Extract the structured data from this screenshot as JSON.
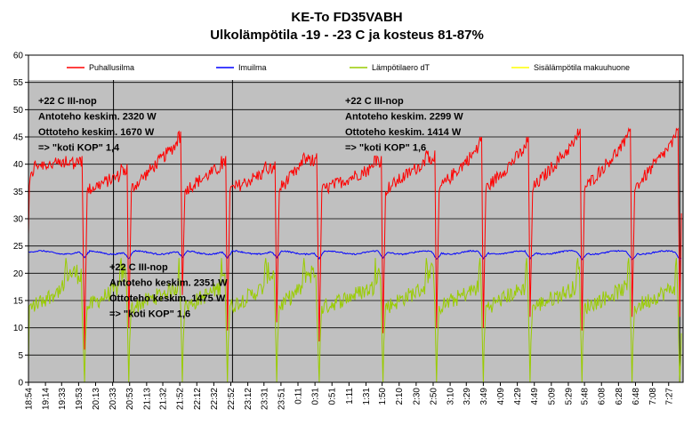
{
  "chart_data": {
    "type": "line",
    "title": "KE-To FD35VABH",
    "subtitle": "Ulkolämpötila -19 - -23 C ja kosteus 81-87%",
    "xlabel": "",
    "ylabel": "",
    "ylim": [
      0,
      60
    ],
    "yticks": [
      0,
      5,
      10,
      15,
      20,
      25,
      30,
      35,
      40,
      45,
      50,
      55,
      60
    ],
    "grid": true,
    "legend_position": "top",
    "x_tick_labels": [
      "18:54",
      "19:14",
      "19:33",
      "19:53",
      "20:13",
      "20:33",
      "20:53",
      "21:13",
      "21:32",
      "21:52",
      "22:12",
      "22:32",
      "22:52",
      "23:12",
      "23:31",
      "23:51",
      "0:11",
      "0:31",
      "0:51",
      "1:11",
      "1:31",
      "1:50",
      "2:10",
      "2:30",
      "2:50",
      "3:10",
      "3:29",
      "3:49",
      "4:09",
      "4:29",
      "4:49",
      "5:09",
      "5:29",
      "5:48",
      "6:08",
      "6:28",
      "6:48",
      "7:08",
      "7:27"
    ],
    "x_tick_minutes": [
      0,
      20,
      39,
      59,
      79,
      99,
      119,
      139,
      158,
      178,
      198,
      218,
      238,
      258,
      277,
      297,
      317,
      337,
      357,
      377,
      397,
      416,
      436,
      456,
      476,
      496,
      515,
      535,
      555,
      575,
      595,
      615,
      635,
      654,
      674,
      694,
      714,
      734,
      753
    ],
    "x_range_minutes": [
      0,
      770
    ],
    "separators_minutes": [
      100,
      240,
      766
    ],
    "cycles": [
      {
        "top": 41.5,
        "low": 6,
        "hold": 20,
        "drop": 3
      },
      {
        "top": 40,
        "low": 10,
        "hold": 8,
        "drop": 2
      },
      {
        "top": 46,
        "low": 16,
        "hold": 3,
        "drop": 2
      },
      {
        "top": 41.5,
        "low": 9.5,
        "hold": 6,
        "drop": 2
      },
      {
        "top": 40.5,
        "low": 11,
        "hold": 12,
        "drop": 2
      },
      {
        "top": 42,
        "low": 7.5,
        "hold": 16,
        "drop": 3
      },
      {
        "top": 41.5,
        "low": 9,
        "hold": 8,
        "drop": 2
      },
      {
        "top": 42.5,
        "low": 10,
        "hold": 11,
        "drop": 2
      },
      {
        "top": 45,
        "low": 10,
        "hold": 3,
        "drop": 2
      },
      {
        "top": 45,
        "low": 12,
        "hold": 3,
        "drop": 2
      },
      {
        "top": 46.5,
        "low": 9.5,
        "hold": 4,
        "drop": 2
      },
      {
        "top": 46.5,
        "low": 12,
        "hold": 3,
        "drop": 2
      }
    ],
    "cycle_bottoms_minutes": [
      66,
      118,
      181,
      234,
      292,
      342,
      417,
      480,
      535,
      590,
      651,
      710,
      766
    ],
    "series": [
      {
        "name": "Puhallusilma",
        "color": "#ff0000",
        "base": 40,
        "min": 6,
        "max": 46.5
      },
      {
        "name": "Imuilma",
        "color": "#0000ff",
        "base": 23.8,
        "min": 22.5,
        "max": 24.5
      },
      {
        "name": "Lämpötilaero dT",
        "color": "#99cc00",
        "base": 16.5,
        "min": 0,
        "max": 24
      },
      {
        "name": "Sisälämpötila makuuhuone",
        "color": "#ffff00",
        "values": []
      }
    ],
    "annotations": [
      {
        "lines": [
          "+22 C III-nop",
          "Antoteho keskim. 2320 W",
          "Ottoteho keskim. 1670 W",
          "=> \"koti KOP\" 1,4"
        ]
      },
      {
        "lines": [
          "+22 C III-nop",
          "Antoteho keskim. 2351 W",
          "Ottoteho keskim. 1475 W",
          "=> \"koti KOP\" 1,6"
        ]
      },
      {
        "lines": [
          "+22 C III-nop",
          "Antoteho keskim. 2299 W",
          "Ottoteho keskim. 1414 W",
          "=> \"koti KOP\" 1,6"
        ]
      }
    ]
  },
  "colors": {
    "plot_background": "#c0c0c0",
    "legend_background": "#ffffff",
    "grid": "#000000"
  }
}
